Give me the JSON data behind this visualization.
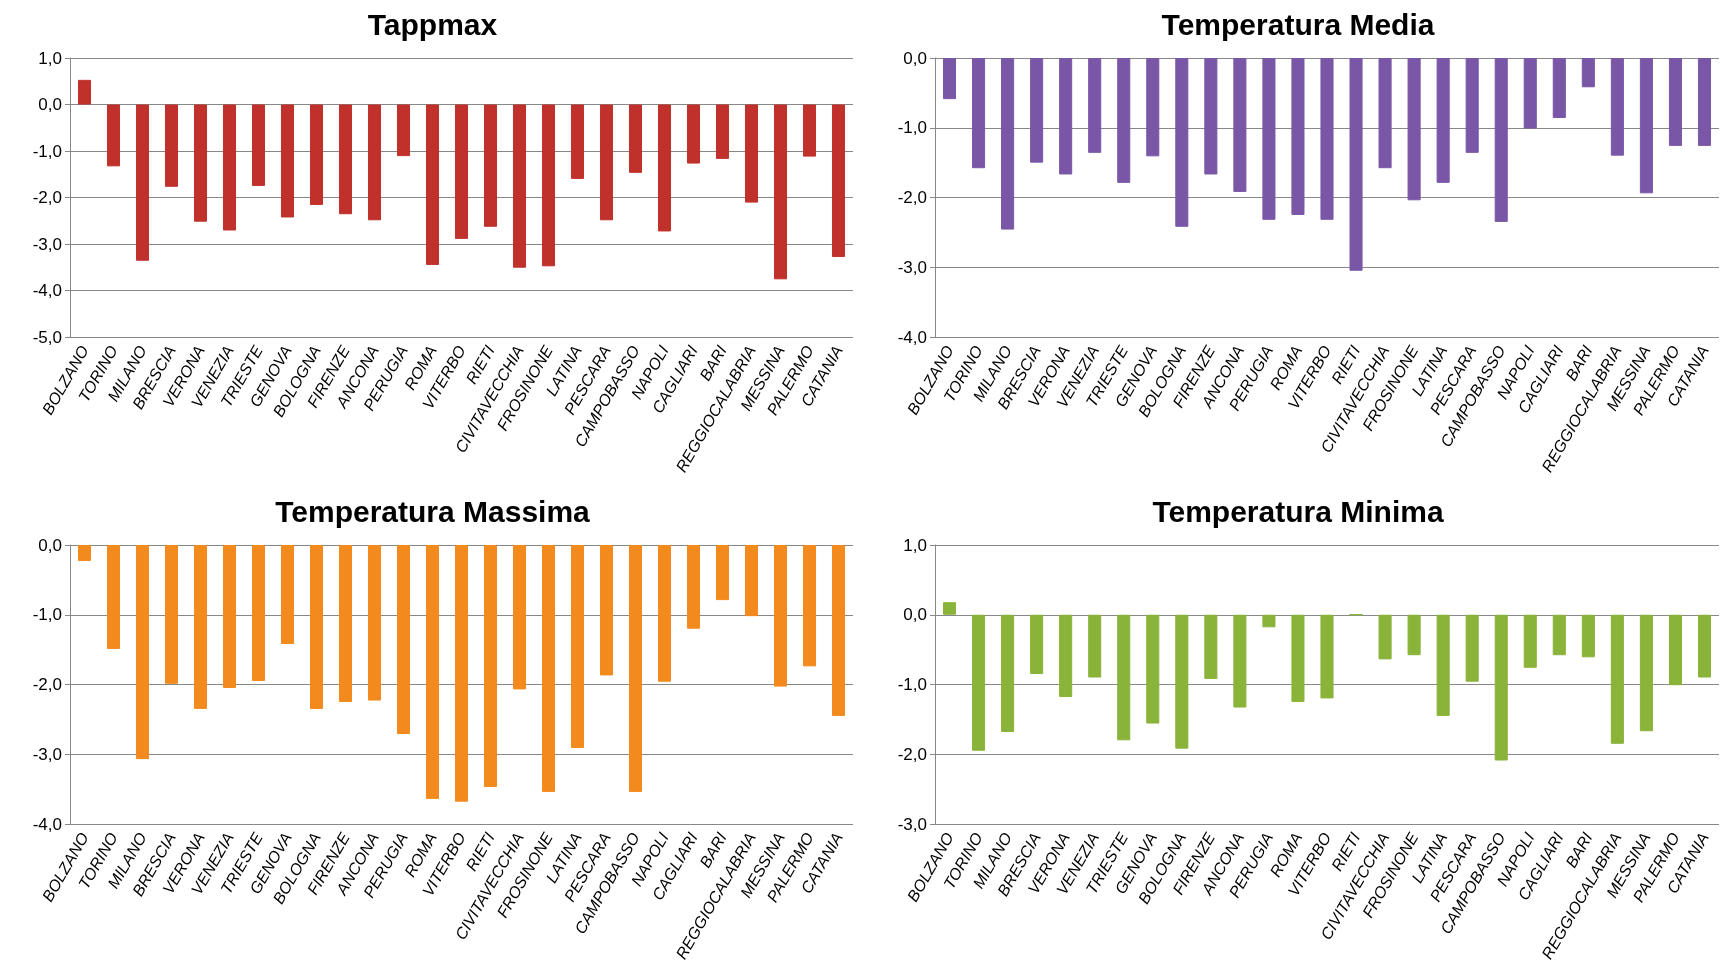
{
  "chart_data": [
    {
      "type": "bar",
      "title": "Tappmax",
      "categories": [
        "BOLZANO",
        "TORINO",
        "MILANO",
        "BRESCIA",
        "VERONA",
        "VENEZIA",
        "TRIESTE",
        "GENOVA",
        "BOLOGNA",
        "FIRENZE",
        "ANCONA",
        "PERUGIA",
        "ROMA",
        "VITERBO",
        "RIETI",
        "CIVITAVECCHIA",
        "FROSINONE",
        "LATINA",
        "PESCARA",
        "CAMPOBASSO",
        "NAPOLI",
        "CAGLIARI",
        "BARI",
        "REGGIOCALABRIA",
        "MESSINA",
        "PALERMO",
        "CATANIA"
      ],
      "values": [
        0.53,
        -1.33,
        -3.36,
        -1.77,
        -2.52,
        -2.71,
        -1.75,
        -2.43,
        -2.16,
        -2.36,
        -2.49,
        -1.11,
        -3.45,
        -2.89,
        -2.63,
        -3.51,
        -3.48,
        -1.6,
        -2.49,
        -1.47,
        -2.73,
        -1.27,
        -1.17,
        -2.11,
        -3.76,
        -1.12,
        -3.28
      ],
      "color": "#c0312c",
      "ylim": [
        -5,
        1
      ],
      "grid": "y",
      "yticks": [
        {
          "value": 1,
          "label": "1,0"
        },
        {
          "value": 0,
          "label": "0,0"
        },
        {
          "value": -1,
          "label": "-1,0"
        },
        {
          "value": -2,
          "label": "-2,0"
        },
        {
          "value": -3,
          "label": "-3,0"
        },
        {
          "value": -4,
          "label": "-4,0"
        },
        {
          "value": -5,
          "label": "-5,0"
        }
      ]
    },
    {
      "type": "bar",
      "title": "Temperatura Media",
      "categories": [
        "BOLZANO",
        "TORINO",
        "MILANO",
        "BRESCIA",
        "VERONA",
        "VENEZIA",
        "TRIESTE",
        "GENOVA",
        "BOLOGNA",
        "FIRENZE",
        "ANCONA",
        "PERUGIA",
        "ROMA",
        "VITERBO",
        "RIETI",
        "CIVITAVECCHIA",
        "FROSINONE",
        "LATINA",
        "PESCARA",
        "CAMPOBASSO",
        "NAPOLI",
        "CAGLIARI",
        "BARI",
        "REGGIOCALABRIA",
        "MESSINA",
        "PALERMO",
        "CATANIA"
      ],
      "values": [
        -0.59,
        -1.58,
        -2.46,
        -1.5,
        -1.67,
        -1.36,
        -1.79,
        -1.41,
        -2.42,
        -1.67,
        -1.92,
        -2.32,
        -2.25,
        -2.32,
        -3.05,
        -1.58,
        -2.04,
        -1.79,
        -1.36,
        -2.35,
        -1.01,
        -0.86,
        -0.42,
        -1.4,
        -1.94,
        -1.26,
        -1.26
      ],
      "color": "#7a57a6",
      "ylim": [
        -4,
        0
      ],
      "grid": "y",
      "yticks": [
        {
          "value": 0,
          "label": "0,0"
        },
        {
          "value": -1,
          "label": "-1,0"
        },
        {
          "value": -2,
          "label": "-2,0"
        },
        {
          "value": -3,
          "label": "-3,0"
        },
        {
          "value": -4,
          "label": "-4,0"
        }
      ]
    },
    {
      "type": "bar",
      "title": "Temperatura Massima",
      "categories": [
        "BOLZANO",
        "TORINO",
        "MILANO",
        "BRESCIA",
        "VERONA",
        "VENEZIA",
        "TRIESTE",
        "GENOVA",
        "BOLOGNA",
        "FIRENZE",
        "ANCONA",
        "PERUGIA",
        "ROMA",
        "VITERBO",
        "RIETI",
        "CIVITAVECCHIA",
        "FROSINONE",
        "LATINA",
        "PESCARA",
        "CAMPOBASSO",
        "NAPOLI",
        "CAGLIARI",
        "BARI",
        "REGGIOCALABRIA",
        "MESSINA",
        "PALERMO",
        "CATANIA"
      ],
      "values": [
        -0.23,
        -1.49,
        -3.07,
        -1.99,
        -2.35,
        -2.05,
        -1.95,
        -1.42,
        -2.35,
        -2.25,
        -2.23,
        -2.71,
        -3.64,
        -3.68,
        -3.47,
        -2.07,
        -3.54,
        -2.91,
        -1.87,
        -3.54,
        -1.96,
        -1.2,
        -0.79,
        -1.02,
        -2.03,
        -1.74,
        -2.45
      ],
      "color": "#f28a1e",
      "ylim": [
        -4,
        0
      ],
      "grid": "y",
      "yticks": [
        {
          "value": 0,
          "label": "0,0"
        },
        {
          "value": -1,
          "label": "-1,0"
        },
        {
          "value": -2,
          "label": "-2,0"
        },
        {
          "value": -3,
          "label": "-3,0"
        },
        {
          "value": -4,
          "label": "-4,0"
        }
      ]
    },
    {
      "type": "bar",
      "title": "Temperatura Minima",
      "categories": [
        "BOLZANO",
        "TORINO",
        "MILANO",
        "BRESCIA",
        "VERONA",
        "VENEZIA",
        "TRIESTE",
        "GENOVA",
        "BOLOGNA",
        "FIRENZE",
        "ANCONA",
        "PERUGIA",
        "ROMA",
        "VITERBO",
        "RIETI",
        "CIVITAVECCHIA",
        "FROSINONE",
        "LATINA",
        "PESCARA",
        "CAMPOBASSO",
        "NAPOLI",
        "CAGLIARI",
        "BARI",
        "REGGIOCALABRIA",
        "MESSINA",
        "PALERMO",
        "CATANIA"
      ],
      "values": [
        0.18,
        -1.95,
        -1.68,
        -0.85,
        -1.18,
        -0.9,
        -1.8,
        -1.56,
        -1.92,
        -0.92,
        -1.33,
        -0.18,
        -1.25,
        -1.2,
        0,
        -0.64,
        -0.58,
        -1.45,
        -0.96,
        -2.09,
        -0.76,
        -0.58,
        -0.61,
        -1.85,
        -1.67,
        -1.01,
        -0.9
      ],
      "color": "#8ab33a",
      "ylim": [
        -3,
        1
      ],
      "yticks": [
        {
          "value": 1,
          "label": "1,0"
        },
        {
          "value": 0,
          "label": "0,0"
        },
        {
          "value": -1,
          "label": "-1,0"
        },
        {
          "value": -2,
          "label": "-2,0"
        },
        {
          "value": -3,
          "label": "-3,0"
        }
      ],
      "grid": "y"
    }
  ]
}
